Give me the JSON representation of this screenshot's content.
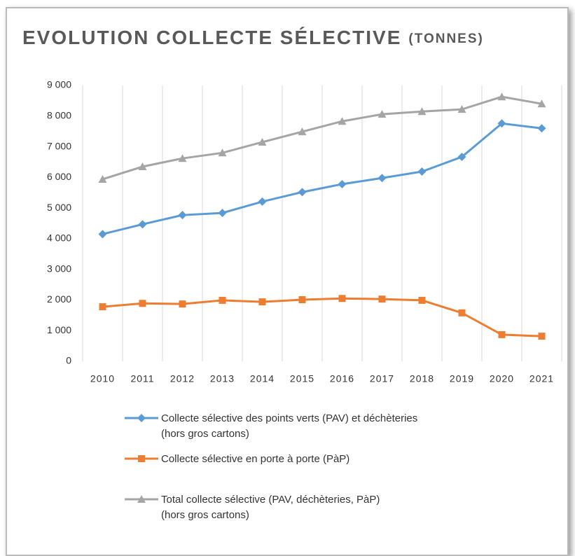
{
  "chart_data": {
    "type": "line",
    "title": "EVOLUTION COLLECTE SÉLECTIVE",
    "subtitle": "(TONNES)",
    "categories": [
      "2010",
      "2011",
      "2012",
      "2013",
      "2014",
      "2015",
      "2016",
      "2017",
      "2018",
      "2019",
      "2020",
      "2021"
    ],
    "series": [
      {
        "name": "Collecte sélective des points verts (PAV) et déchèteries\n(hors gros cartons)",
        "color": "#5b9bd5",
        "marker": "diamond",
        "values": [
          4150,
          4470,
          4770,
          4840,
          5210,
          5520,
          5780,
          5980,
          6190,
          6670,
          7760,
          7600
        ]
      },
      {
        "name": "Collecte sélective en porte à porte (PàP)",
        "color": "#ed7d31",
        "marker": "square",
        "values": [
          1780,
          1890,
          1870,
          1990,
          1940,
          2010,
          2050,
          2030,
          1990,
          1580,
          870,
          820
        ]
      },
      {
        "name": "Total collecte sélective (PAV, déchèteries, PàP)\n(hors gros cartons)",
        "color": "#a5a5a5",
        "marker": "triangle",
        "values": [
          5940,
          6350,
          6620,
          6800,
          7150,
          7490,
          7830,
          8060,
          8150,
          8220,
          8630,
          8400
        ]
      }
    ],
    "ylim": [
      0,
      9000
    ],
    "yticks": [
      0,
      {
        "value": 1000,
        "label": "1 000"
      },
      {
        "value": 2000,
        "label": "2 000"
      },
      {
        "value": 3000,
        "label": "3 000"
      },
      {
        "value": 4000,
        "label": "4 000"
      },
      {
        "value": 5000,
        "label": "5 000"
      },
      {
        "value": 6000,
        "label": "6 000"
      },
      {
        "value": 7000,
        "label": "7 000"
      },
      {
        "value": 8000,
        "label": "8 000"
      },
      {
        "value": 9000,
        "label": "9 000"
      }
    ],
    "grid": "x",
    "legend": "bottom"
  }
}
